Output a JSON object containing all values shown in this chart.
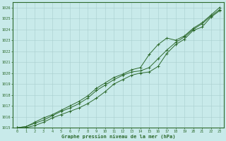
{
  "xlabel": "Graphe pression niveau de la mer (hPa)",
  "hours": [
    0,
    1,
    2,
    3,
    4,
    5,
    6,
    7,
    8,
    9,
    10,
    11,
    12,
    13,
    14,
    15,
    16,
    17,
    18,
    19,
    20,
    21,
    22,
    23
  ],
  "line1": [
    1015.0,
    1015.0,
    1015.2,
    1015.5,
    1015.9,
    1016.2,
    1016.5,
    1016.8,
    1017.2,
    1017.7,
    1018.3,
    1019.0,
    1019.4,
    1019.8,
    1020.0,
    1020.1,
    1020.6,
    1021.8,
    1022.6,
    1023.1,
    1023.9,
    1024.2,
    1025.1,
    1025.7
  ],
  "line2": [
    1015.0,
    1015.1,
    1015.4,
    1015.7,
    1016.1,
    1016.5,
    1016.8,
    1017.2,
    1017.7,
    1018.4,
    1018.9,
    1019.4,
    1019.8,
    1020.1,
    1020.2,
    1020.5,
    1021.3,
    1022.1,
    1022.8,
    1023.3,
    1024.0,
    1024.5,
    1025.2,
    1025.8
  ],
  "line3": [
    1015.0,
    1015.1,
    1015.5,
    1015.9,
    1016.2,
    1016.6,
    1017.0,
    1017.4,
    1017.9,
    1018.6,
    1019.1,
    1019.6,
    1019.9,
    1020.3,
    1020.5,
    1021.7,
    1022.6,
    1023.2,
    1023.0,
    1023.4,
    1024.1,
    1024.6,
    1025.3,
    1026.0
  ],
  "line_color": "#2d6a2d",
  "bg_color": "#c8eaea",
  "grid_color": "#a8cece",
  "ylim": [
    1015,
    1026
  ],
  "xlim": [
    0,
    23
  ]
}
